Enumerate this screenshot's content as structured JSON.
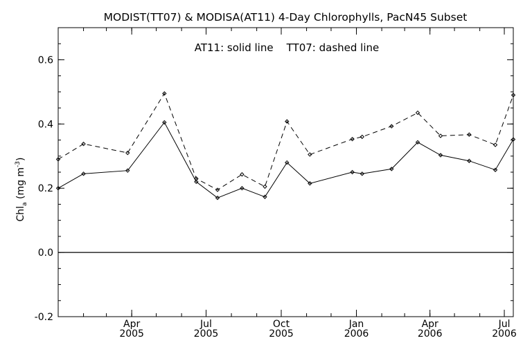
{
  "chart_data": {
    "type": "line",
    "title": "MODIST(TT07) & MODISA(AT11) 4-Day Chlorophylls, PacN45 Subset",
    "annotation": "AT11: solid line    TT07: dashed line",
    "ylabel": "Chla (mg m-3)",
    "ylabel_parts": {
      "base": "Chl",
      "sub": "a",
      "mid": " (mg m",
      "sup": "-3",
      "end": ")"
    },
    "ylim": [
      -0.2,
      0.7
    ],
    "yticks": [
      {
        "value": -0.2,
        "label": "-0.2"
      },
      {
        "value": 0.0,
        "label": "0.0"
      },
      {
        "value": 0.2,
        "label": "0.2"
      },
      {
        "value": 0.4,
        "label": "0.4"
      },
      {
        "value": 0.6,
        "label": "0.6"
      }
    ],
    "xlim": [
      "2005-01-01",
      "2006-07-12"
    ],
    "xticks": [
      {
        "date": "2005-04-01",
        "month": "Apr",
        "year": "2005"
      },
      {
        "date": "2005-07-01",
        "month": "Jul",
        "year": "2005"
      },
      {
        "date": "2005-10-01",
        "month": "Oct",
        "year": "2005"
      },
      {
        "date": "2006-01-01",
        "month": "Jan",
        "year": "2006"
      },
      {
        "date": "2006-04-01",
        "month": "Apr",
        "year": "2006"
      },
      {
        "date": "2006-07-01",
        "month": "Jul",
        "year": "2006"
      }
    ],
    "zero_line": 0.0,
    "series": [
      {
        "name": "AT11",
        "style": "solid",
        "color": "#000000",
        "x": [
          "2005-01-01",
          "2005-02-01",
          "2005-03-27",
          "2005-05-11",
          "2005-06-19",
          "2005-07-15",
          "2005-08-14",
          "2005-09-11",
          "2005-10-08",
          "2005-11-05",
          "2005-12-27",
          "2006-01-08",
          "2006-02-13",
          "2006-03-17",
          "2006-04-14",
          "2006-05-19",
          "2006-06-20",
          "2006-07-12"
        ],
        "values": [
          0.2,
          0.245,
          0.255,
          0.405,
          0.22,
          0.17,
          0.2,
          0.173,
          0.28,
          0.215,
          0.25,
          0.245,
          0.26,
          0.343,
          0.303,
          0.285,
          0.257,
          0.352
        ]
      },
      {
        "name": "TT07",
        "style": "dashed",
        "color": "#000000",
        "x": [
          "2005-01-01",
          "2005-02-01",
          "2005-03-27",
          "2005-05-11",
          "2005-06-19",
          "2005-07-15",
          "2005-08-14",
          "2005-09-11",
          "2005-10-08",
          "2005-11-05",
          "2005-12-27",
          "2006-01-08",
          "2006-02-13",
          "2006-03-17",
          "2006-04-14",
          "2006-05-19",
          "2006-06-20",
          "2006-07-12"
        ],
        "values": [
          0.29,
          0.338,
          0.31,
          0.495,
          0.23,
          0.195,
          0.243,
          0.205,
          0.408,
          0.305,
          0.353,
          0.36,
          0.393,
          0.435,
          0.363,
          0.367,
          0.335,
          0.49
        ]
      }
    ]
  }
}
